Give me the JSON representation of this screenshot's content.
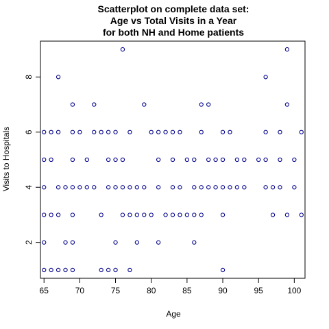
{
  "chart_data": {
    "type": "scatter",
    "title_lines": [
      "Scatterplot on complete data set:",
      "Age vs Total Visits in a Year",
      "for both NH and Home patients"
    ],
    "xlabel": "Age",
    "ylabel": "Visits to Hospitals",
    "xlim": [
      64.5,
      101.5
    ],
    "ylim": [
      0.7,
      9.3
    ],
    "x_ticks": [
      65,
      70,
      75,
      80,
      85,
      90,
      95,
      100
    ],
    "y_ticks": [
      2,
      4,
      6,
      8
    ],
    "point_color": "#00008B",
    "grid": false,
    "points": [
      [
        65,
        1
      ],
      [
        66,
        1
      ],
      [
        67,
        1
      ],
      [
        68,
        1
      ],
      [
        69,
        1
      ],
      [
        73,
        1
      ],
      [
        74,
        1
      ],
      [
        75,
        1
      ],
      [
        77,
        1
      ],
      [
        90,
        1
      ],
      [
        65,
        2
      ],
      [
        68,
        2
      ],
      [
        69,
        2
      ],
      [
        75,
        2
      ],
      [
        78,
        2
      ],
      [
        81,
        2
      ],
      [
        86,
        2
      ],
      [
        65,
        3
      ],
      [
        66,
        3
      ],
      [
        67,
        3
      ],
      [
        69,
        3
      ],
      [
        73,
        3
      ],
      [
        76,
        3
      ],
      [
        77,
        3
      ],
      [
        78,
        3
      ],
      [
        79,
        3
      ],
      [
        80,
        3
      ],
      [
        82,
        3
      ],
      [
        83,
        3
      ],
      [
        84,
        3
      ],
      [
        85,
        3
      ],
      [
        86,
        3
      ],
      [
        87,
        3
      ],
      [
        90,
        3
      ],
      [
        97,
        3
      ],
      [
        99,
        3
      ],
      [
        101,
        3
      ],
      [
        65,
        4
      ],
      [
        67,
        4
      ],
      [
        68,
        4
      ],
      [
        69,
        4
      ],
      [
        70,
        4
      ],
      [
        71,
        4
      ],
      [
        72,
        4
      ],
      [
        74,
        4
      ],
      [
        75,
        4
      ],
      [
        76,
        4
      ],
      [
        77,
        4
      ],
      [
        78,
        4
      ],
      [
        79,
        4
      ],
      [
        81,
        4
      ],
      [
        83,
        4
      ],
      [
        84,
        4
      ],
      [
        86,
        4
      ],
      [
        87,
        4
      ],
      [
        88,
        4
      ],
      [
        89,
        4
      ],
      [
        90,
        4
      ],
      [
        91,
        4
      ],
      [
        92,
        4
      ],
      [
        93,
        4
      ],
      [
        96,
        4
      ],
      [
        97,
        4
      ],
      [
        98,
        4
      ],
      [
        100,
        4
      ],
      [
        65,
        5
      ],
      [
        66,
        5
      ],
      [
        69,
        5
      ],
      [
        71,
        5
      ],
      [
        74,
        5
      ],
      [
        75,
        5
      ],
      [
        76,
        5
      ],
      [
        81,
        5
      ],
      [
        83,
        5
      ],
      [
        85,
        5
      ],
      [
        86,
        5
      ],
      [
        88,
        5
      ],
      [
        89,
        5
      ],
      [
        90,
        5
      ],
      [
        92,
        5
      ],
      [
        93,
        5
      ],
      [
        95,
        5
      ],
      [
        96,
        5
      ],
      [
        98,
        5
      ],
      [
        100,
        5
      ],
      [
        65,
        6
      ],
      [
        66,
        6
      ],
      [
        67,
        6
      ],
      [
        69,
        6
      ],
      [
        70,
        6
      ],
      [
        72,
        6
      ],
      [
        73,
        6
      ],
      [
        74,
        6
      ],
      [
        75,
        6
      ],
      [
        77,
        6
      ],
      [
        80,
        6
      ],
      [
        81,
        6
      ],
      [
        82,
        6
      ],
      [
        83,
        6
      ],
      [
        84,
        6
      ],
      [
        87,
        6
      ],
      [
        90,
        6
      ],
      [
        91,
        6
      ],
      [
        96,
        6
      ],
      [
        98,
        6
      ],
      [
        101,
        6
      ],
      [
        69,
        7
      ],
      [
        72,
        7
      ],
      [
        79,
        7
      ],
      [
        87,
        7
      ],
      [
        88,
        7
      ],
      [
        99,
        7
      ],
      [
        67,
        8
      ],
      [
        96,
        8
      ],
      [
        76,
        9
      ],
      [
        99,
        9
      ]
    ]
  }
}
